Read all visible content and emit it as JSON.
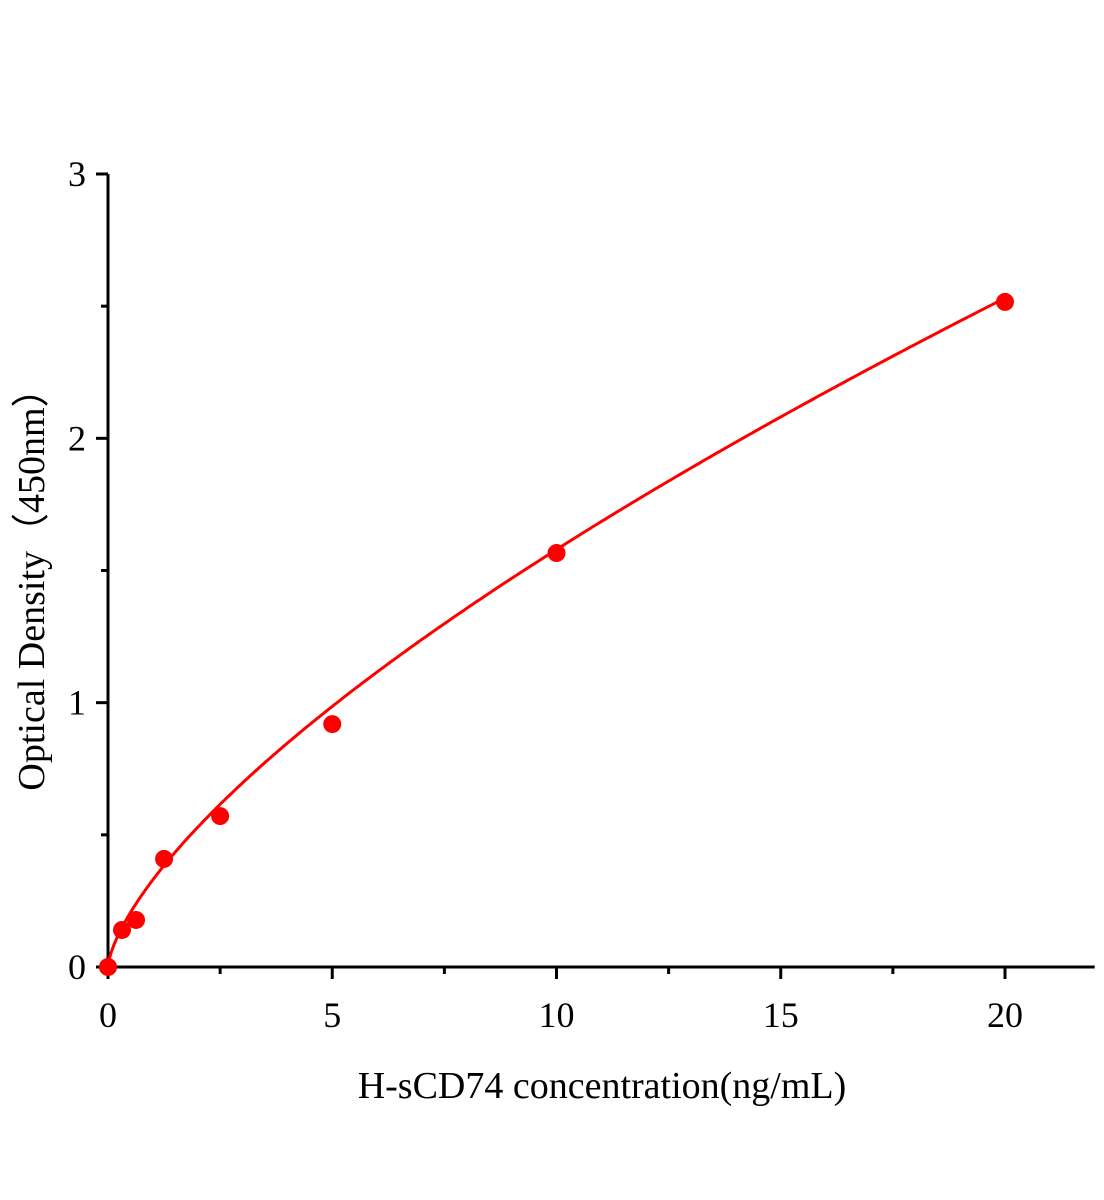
{
  "chart_data": {
    "type": "scatter",
    "title": "",
    "xlabel": "H-sCD74 concentration(ng/mL)",
    "ylabel": "Optical Density（450nm）",
    "xlim": [
      0,
      22
    ],
    "ylim": [
      0,
      3
    ],
    "x_ticks": [
      0,
      5,
      10,
      15,
      20
    ],
    "x_tick_labels": [
      "0",
      "5",
      "10",
      "15",
      "20"
    ],
    "x_minor_ticks": [
      2.5,
      7.5,
      12.5,
      17.5
    ],
    "y_ticks": [
      0,
      1,
      2,
      3
    ],
    "y_tick_labels": [
      "0",
      "1",
      "2",
      "3"
    ],
    "y_minor_ticks": [
      0.5,
      1.5,
      2.5
    ],
    "grid": false,
    "legend": "none",
    "series": [
      {
        "x": [
          0,
          0.3125,
          0.625,
          1.25,
          2.5,
          5,
          10,
          20
        ],
        "y": [
          0,
          0.14,
          0.178,
          0.409,
          0.571,
          0.919,
          1.566,
          2.516
        ],
        "color": "#ff0000",
        "fit_line": true
      }
    ]
  }
}
